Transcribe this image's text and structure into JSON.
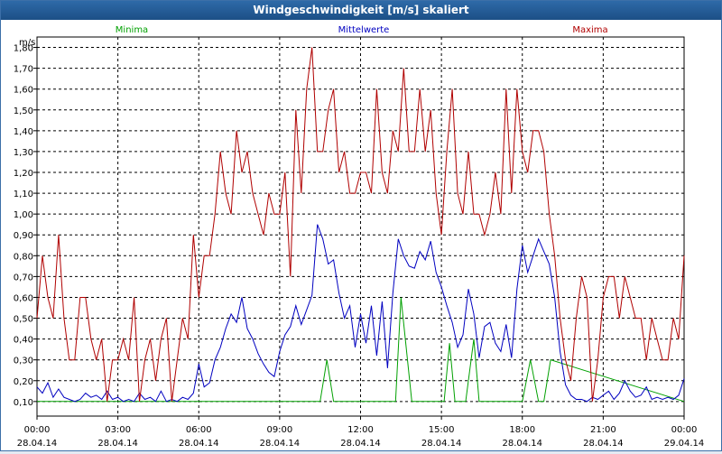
{
  "window": {
    "title": "Windgeschwindigkeit [m/s] skaliert"
  },
  "chart_data": {
    "type": "line",
    "title": "Windgeschwindigkeit [m/s] skaliert",
    "ylabel": "m/s",
    "xlabel": "",
    "ylim": [
      0.03,
      1.85
    ],
    "xlim": [
      0,
      24
    ],
    "grid": true,
    "legend_placement": "top",
    "y_ticks": [
      "0,10",
      "0,20",
      "0,30",
      "0,40",
      "0,50",
      "0,60",
      "0,70",
      "0,80",
      "0,90",
      "1,00",
      "1,10",
      "1,20",
      "1,30",
      "1,40",
      "1,50",
      "1,60",
      "1,70",
      "1,80"
    ],
    "y_tick_values": [
      0.1,
      0.2,
      0.3,
      0.4,
      0.5,
      0.6,
      0.7,
      0.8,
      0.9,
      1.0,
      1.1,
      1.2,
      1.3,
      1.4,
      1.5,
      1.6,
      1.7,
      1.8
    ],
    "x_ticks": [
      {
        "value": 0,
        "time": "00:00",
        "date": "28.04.14"
      },
      {
        "value": 3,
        "time": "03:00",
        "date": "28.04.14"
      },
      {
        "value": 6,
        "time": "06:00",
        "date": "28.04.14"
      },
      {
        "value": 9,
        "time": "09:00",
        "date": "28.04.14"
      },
      {
        "value": 12,
        "time": "12:00",
        "date": "28.04.14"
      },
      {
        "value": 15,
        "time": "15:00",
        "date": "28.04.14"
      },
      {
        "value": 18,
        "time": "18:00",
        "date": "28.04.14"
      },
      {
        "value": 21,
        "time": "21:00",
        "date": "28.04.14"
      },
      {
        "value": 24,
        "time": "00:00",
        "date": "29.04.14"
      }
    ],
    "series": [
      {
        "name": "Minima",
        "color": "#00a000",
        "x": [
          0,
          10.5,
          10.75,
          11.0,
          13.3,
          13.5,
          13.9,
          14.3,
          15.1,
          15.3,
          15.5,
          15.9,
          16.2,
          16.4,
          18.0,
          18.3,
          18.6,
          18.8,
          19.05,
          24
        ],
        "y": [
          0.1,
          0.1,
          0.3,
          0.1,
          0.1,
          0.6,
          0.1,
          0.1,
          0.1,
          0.38,
          0.1,
          0.1,
          0.4,
          0.1,
          0.1,
          0.3,
          0.1,
          0.1,
          0.3,
          0.1
        ]
      },
      {
        "name": "Mittelwerte",
        "color": "#0000c0",
        "x": [
          0,
          0.2,
          0.4,
          0.6,
          0.8,
          1.0,
          1.2,
          1.4,
          1.6,
          1.8,
          2.0,
          2.2,
          2.4,
          2.6,
          2.8,
          3.0,
          3.2,
          3.4,
          3.6,
          3.8,
          4.0,
          4.2,
          4.4,
          4.6,
          4.8,
          5.0,
          5.2,
          5.4,
          5.6,
          5.8,
          6.0,
          6.2,
          6.4,
          6.6,
          6.8,
          7.0,
          7.2,
          7.4,
          7.6,
          7.8,
          8.0,
          8.2,
          8.4,
          8.6,
          8.8,
          9.0,
          9.2,
          9.4,
          9.6,
          9.8,
          10.0,
          10.2,
          10.4,
          10.6,
          10.8,
          11.0,
          11.2,
          11.4,
          11.6,
          11.8,
          12.0,
          12.2,
          12.4,
          12.6,
          12.8,
          13.0,
          13.2,
          13.4,
          13.6,
          13.8,
          14.0,
          14.2,
          14.4,
          14.6,
          14.8,
          15.0,
          15.2,
          15.4,
          15.6,
          15.8,
          16.0,
          16.2,
          16.4,
          16.6,
          16.8,
          17.0,
          17.2,
          17.4,
          17.6,
          17.8,
          18.0,
          18.2,
          18.4,
          18.6,
          18.8,
          19.0,
          19.2,
          19.4,
          19.6,
          19.8,
          20.0,
          20.2,
          20.4,
          20.6,
          20.8,
          21.0,
          21.2,
          21.4,
          21.6,
          21.8,
          22.0,
          22.2,
          22.4,
          22.6,
          22.8,
          23.0,
          23.2,
          23.4,
          23.6,
          23.8,
          24.0
        ],
        "y": [
          0.17,
          0.14,
          0.19,
          0.12,
          0.16,
          0.12,
          0.11,
          0.1,
          0.11,
          0.14,
          0.12,
          0.13,
          0.11,
          0.15,
          0.11,
          0.12,
          0.1,
          0.11,
          0.1,
          0.14,
          0.11,
          0.12,
          0.1,
          0.15,
          0.1,
          0.11,
          0.1,
          0.12,
          0.11,
          0.14,
          0.28,
          0.17,
          0.19,
          0.3,
          0.36,
          0.45,
          0.52,
          0.48,
          0.6,
          0.45,
          0.4,
          0.33,
          0.28,
          0.24,
          0.22,
          0.34,
          0.42,
          0.46,
          0.56,
          0.47,
          0.54,
          0.61,
          0.95,
          0.88,
          0.76,
          0.78,
          0.62,
          0.5,
          0.56,
          0.36,
          0.52,
          0.38,
          0.56,
          0.32,
          0.58,
          0.26,
          0.62,
          0.88,
          0.8,
          0.75,
          0.74,
          0.82,
          0.78,
          0.87,
          0.72,
          0.65,
          0.56,
          0.48,
          0.36,
          0.42,
          0.64,
          0.52,
          0.31,
          0.46,
          0.48,
          0.38,
          0.34,
          0.47,
          0.31,
          0.64,
          0.85,
          0.72,
          0.8,
          0.88,
          0.82,
          0.76,
          0.6,
          0.34,
          0.18,
          0.13,
          0.11,
          0.11,
          0.1,
          0.12,
          0.11,
          0.13,
          0.15,
          0.11,
          0.14,
          0.2,
          0.15,
          0.12,
          0.13,
          0.17,
          0.11,
          0.12,
          0.11,
          0.12,
          0.11,
          0.13,
          0.21
        ]
      },
      {
        "name": "Maxima",
        "color": "#b00000",
        "x": [
          0,
          0.2,
          0.4,
          0.6,
          0.8,
          1.0,
          1.2,
          1.4,
          1.6,
          1.8,
          2.0,
          2.2,
          2.4,
          2.6,
          2.8,
          3.0,
          3.2,
          3.4,
          3.6,
          3.8,
          4.0,
          4.2,
          4.4,
          4.6,
          4.8,
          5.0,
          5.2,
          5.4,
          5.6,
          5.8,
          6.0,
          6.2,
          6.4,
          6.6,
          6.8,
          7.0,
          7.2,
          7.4,
          7.6,
          7.8,
          8.0,
          8.2,
          8.4,
          8.6,
          8.8,
          9.0,
          9.2,
          9.4,
          9.6,
          9.8,
          10.0,
          10.2,
          10.4,
          10.6,
          10.8,
          11.0,
          11.2,
          11.4,
          11.6,
          11.8,
          12.0,
          12.2,
          12.4,
          12.6,
          12.8,
          13.0,
          13.2,
          13.4,
          13.6,
          13.8,
          14.0,
          14.2,
          14.4,
          14.6,
          14.8,
          15.0,
          15.2,
          15.4,
          15.6,
          15.8,
          16.0,
          16.2,
          16.4,
          16.6,
          16.8,
          17.0,
          17.2,
          17.4,
          17.6,
          17.8,
          18.0,
          18.2,
          18.4,
          18.6,
          18.8,
          19.0,
          19.2,
          19.4,
          19.6,
          19.8,
          20.0,
          20.2,
          20.4,
          20.6,
          20.8,
          21.0,
          21.2,
          21.4,
          21.6,
          21.8,
          22.0,
          22.2,
          22.4,
          22.6,
          22.8,
          23.0,
          23.2,
          23.4,
          23.6,
          23.8,
          24.0
        ],
        "y": [
          0.5,
          0.8,
          0.6,
          0.5,
          0.9,
          0.5,
          0.3,
          0.3,
          0.6,
          0.6,
          0.4,
          0.3,
          0.4,
          0.1,
          0.3,
          0.3,
          0.4,
          0.3,
          0.6,
          0.1,
          0.3,
          0.4,
          0.2,
          0.4,
          0.5,
          0.1,
          0.3,
          0.5,
          0.4,
          0.9,
          0.6,
          0.8,
          0.8,
          1.0,
          1.3,
          1.1,
          1.0,
          1.4,
          1.2,
          1.3,
          1.1,
          1.0,
          0.9,
          1.1,
          1.0,
          1.0,
          1.2,
          0.7,
          1.5,
          1.1,
          1.6,
          1.8,
          1.3,
          1.3,
          1.5,
          1.6,
          1.2,
          1.3,
          1.1,
          1.1,
          1.2,
          1.2,
          1.1,
          1.6,
          1.2,
          1.1,
          1.4,
          1.3,
          1.7,
          1.3,
          1.3,
          1.6,
          1.3,
          1.5,
          1.1,
          0.9,
          1.3,
          1.6,
          1.1,
          1.0,
          1.3,
          1.0,
          1.0,
          0.9,
          1.0,
          1.2,
          1.0,
          1.6,
          1.1,
          1.6,
          1.3,
          1.2,
          1.4,
          1.4,
          1.3,
          1.0,
          0.8,
          0.5,
          0.3,
          0.2,
          0.5,
          0.7,
          0.6,
          0.1,
          0.3,
          0.6,
          0.7,
          0.7,
          0.5,
          0.7,
          0.6,
          0.5,
          0.5,
          0.3,
          0.5,
          0.4,
          0.3,
          0.3,
          0.5,
          0.4,
          0.8
        ]
      }
    ]
  }
}
